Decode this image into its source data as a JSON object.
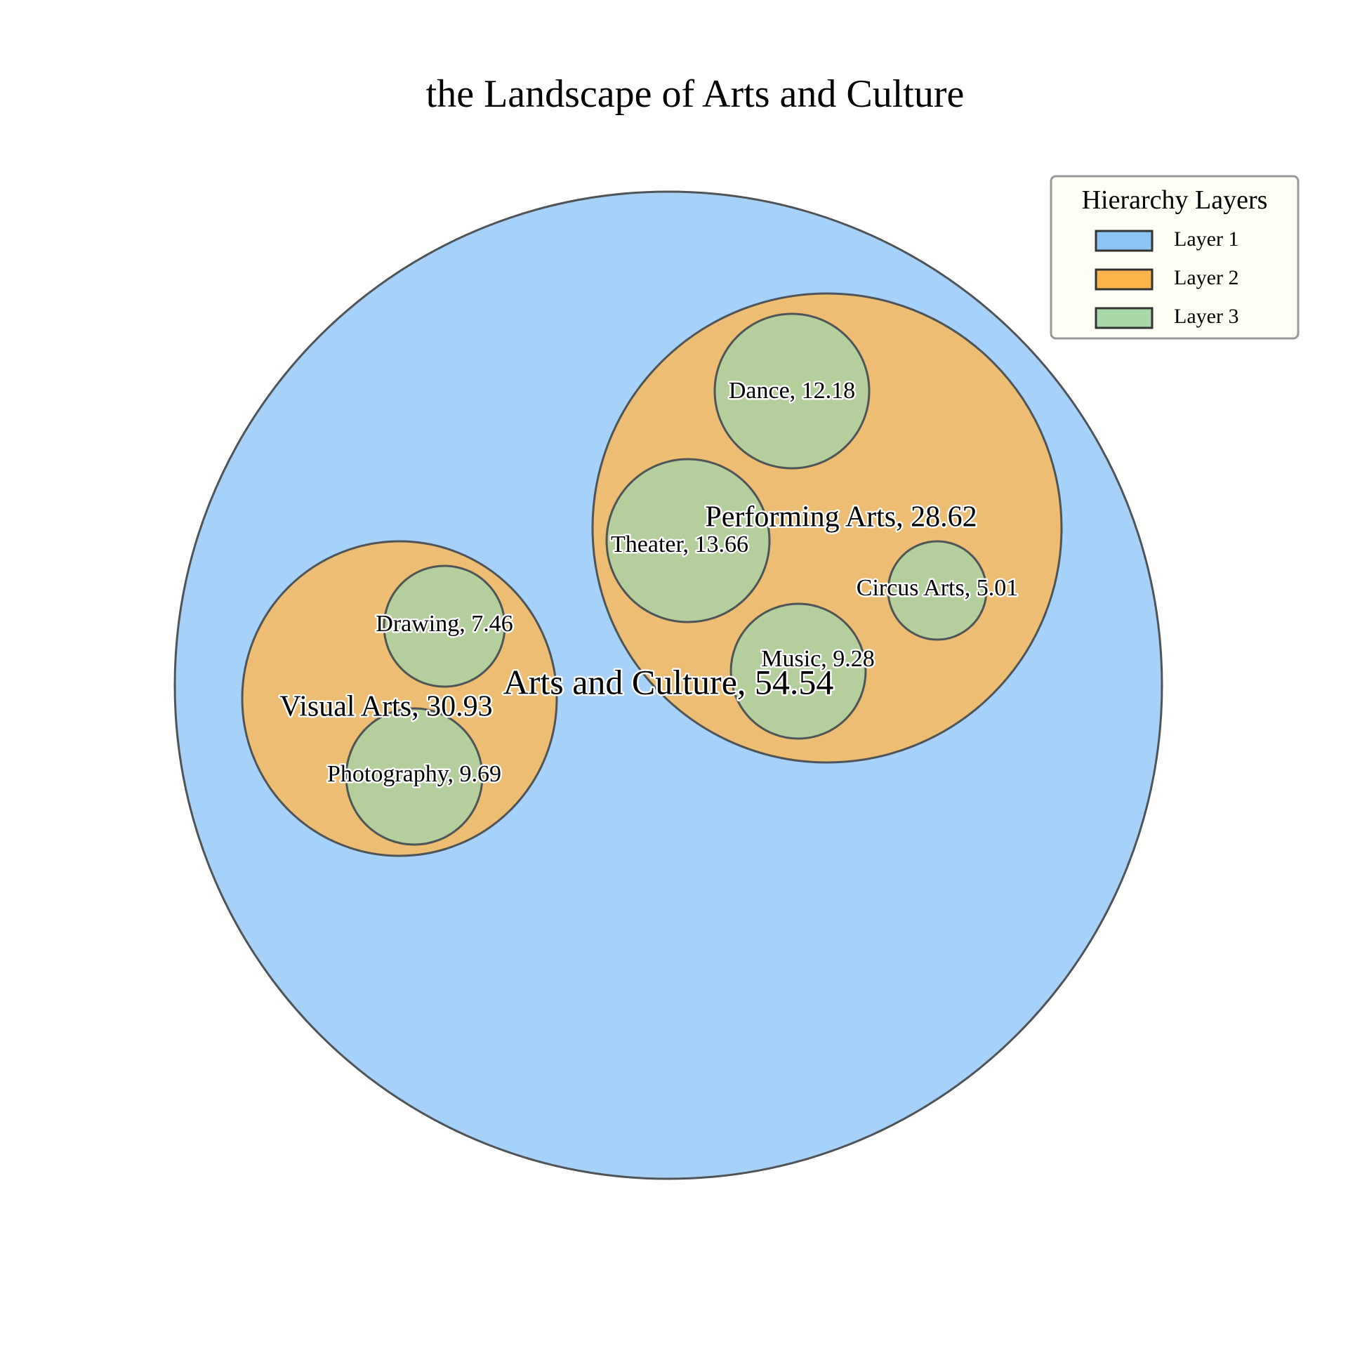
{
  "chart_data": {
    "type": "circle_packing",
    "title": "the Landscape of Arts and Culture",
    "legend": {
      "title": "Hierarchy Layers",
      "placement": "top-right",
      "items": [
        {
          "label": "Layer 1",
          "color": "#8cc4f5"
        },
        {
          "label": "Layer 2",
          "color": "#fbb44c"
        },
        {
          "label": "Layer 3",
          "color": "#a8d8a8"
        }
      ]
    },
    "nodes": [
      {
        "name": "Arts and Culture",
        "value": 54.54,
        "layer": 1,
        "label": "Arts and Culture, 54.54"
      },
      {
        "name": "Visual Arts",
        "value": 30.93,
        "layer": 2,
        "parent": "Arts and Culture",
        "label": "Visual Arts, 30.93"
      },
      {
        "name": "Performing Arts",
        "value": 28.62,
        "layer": 2,
        "parent": "Arts and Culture",
        "label": "Performing Arts, 28.62"
      },
      {
        "name": "Drawing",
        "value": 7.46,
        "layer": 3,
        "parent": "Visual Arts",
        "label": "Drawing, 7.46"
      },
      {
        "name": "Photography",
        "value": 9.69,
        "layer": 3,
        "parent": "Visual Arts",
        "label": "Photography, 9.69"
      },
      {
        "name": "Dance",
        "value": 12.18,
        "layer": 3,
        "parent": "Performing Arts",
        "label": "Dance, 12.18"
      },
      {
        "name": "Theater",
        "value": 13.66,
        "layer": 3,
        "parent": "Performing Arts",
        "label": "Theater, 13.66"
      },
      {
        "name": "Circus Arts",
        "value": 5.01,
        "layer": 3,
        "parent": "Performing Arts",
        "label": "Circus Arts, 5.01"
      },
      {
        "name": "Music",
        "value": 9.28,
        "layer": 3,
        "parent": "Performing Arts",
        "label": "Music, 9.28"
      }
    ],
    "colors": {
      "layer1": "#a6d1f8",
      "layer2": "#ecbd72",
      "layer3": "#b4cf9c",
      "edge": "#4f5459"
    }
  }
}
